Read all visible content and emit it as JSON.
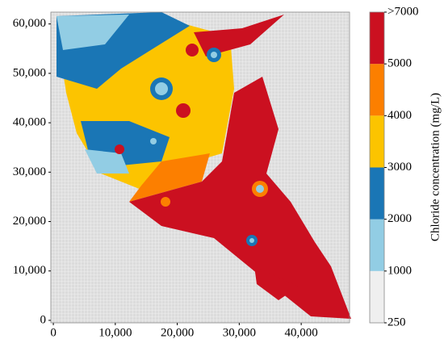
{
  "chart_data": {
    "type": "map",
    "xlim": [
      -400,
      47800
    ],
    "ylim": [
      -500,
      62400
    ],
    "xticks": [
      0,
      {
        "value": 10000,
        "label": "10,000"
      },
      {
        "value": 20000,
        "label": "20,000"
      },
      {
        "value": 30000,
        "label": "30,000"
      },
      {
        "value": 40000,
        "label": "40,000"
      }
    ],
    "yticks": [
      0,
      {
        "value": 10000,
        "label": "10,000"
      },
      {
        "value": 20000,
        "label": "20,000"
      },
      {
        "value": 30000,
        "label": "30,000"
      },
      {
        "value": 40000,
        "label": "40,000"
      },
      {
        "value": 50000,
        "label": "50,000"
      },
      {
        "value": 60000,
        "label": "60,000"
      }
    ],
    "colorbar": {
      "label": "Chloride concentration (mg/L)",
      "bounds": [
        250,
        1000,
        2000,
        3000,
        4000,
        5000,
        {
          "value": 7000,
          "label": ">7000"
        }
      ],
      "colors": [
        "#efefef",
        "#92cde4",
        "#1a76b5",
        "#fcc400",
        "#fc7f00",
        "#cb1020"
      ]
    }
  }
}
